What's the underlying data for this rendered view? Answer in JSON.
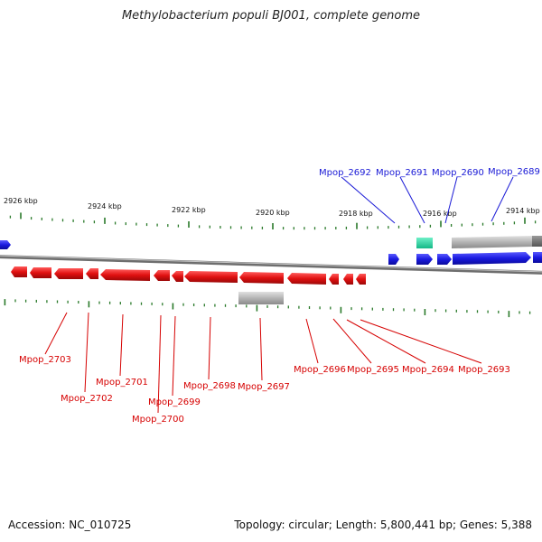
{
  "title": "Methylobacterium populi BJ001, complete genome",
  "footer": {
    "accession": "Accession: NC_010725",
    "info": "Topology: circular; Length: 5,800,441 bp; Genes: 5,388"
  },
  "kbp_labels": [
    "2926 kbp",
    "2924 kbp",
    "2922 kbp",
    "2920 kbp",
    "2918 kbp",
    "2916 kbp",
    "2914 kbp"
  ],
  "genes_forward": [
    {
      "id": "Mpop_2692",
      "label": "Mpop_2692"
    },
    {
      "id": "Mpop_2691",
      "label": "Mpop_2691"
    },
    {
      "id": "Mpop_2690",
      "label": "Mpop_2690"
    },
    {
      "id": "Mpop_2689",
      "label": "Mpop_2689"
    }
  ],
  "genes_reverse": [
    {
      "id": "Mpop_2703",
      "label": "Mpop_2703"
    },
    {
      "id": "Mpop_2702",
      "label": "Mpop_2702"
    },
    {
      "id": "Mpop_2701",
      "label": "Mpop_2701"
    },
    {
      "id": "Mpop_2700",
      "label": "Mpop_2700"
    },
    {
      "id": "Mpop_2699",
      "label": "Mpop_2699"
    },
    {
      "id": "Mpop_2698",
      "label": "Mpop_2698"
    },
    {
      "id": "Mpop_2697",
      "label": "Mpop_2697"
    },
    {
      "id": "Mpop_2696",
      "label": "Mpop_2696"
    },
    {
      "id": "Mpop_2695",
      "label": "Mpop_2695"
    },
    {
      "id": "Mpop_2694",
      "label": "Mpop_2694"
    },
    {
      "id": "Mpop_2693",
      "label": "Mpop_2693"
    }
  ],
  "colors": {
    "forward": "#1a1ae0",
    "reverse": "#e01010",
    "rna": "#2fd8a8",
    "other": "#b4b4b4",
    "ticks": "#2a7a2a",
    "backbone": "#8a8a8a"
  }
}
